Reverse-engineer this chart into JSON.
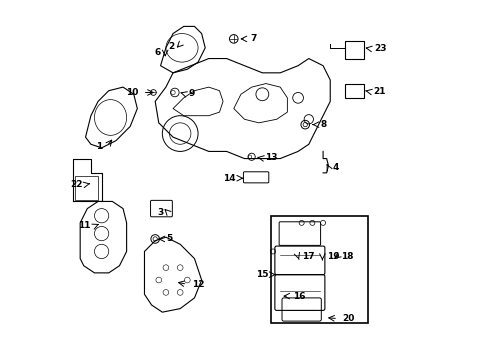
{
  "background_color": "#ffffff",
  "line_color": "#000000",
  "text_color": "#000000",
  "figsize": [
    4.89,
    3.6
  ],
  "dpi": 100
}
